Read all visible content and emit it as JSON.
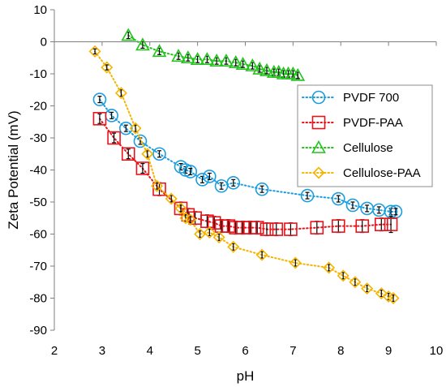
{
  "chart_data": {
    "type": "scatter",
    "xlabel": "pH",
    "ylabel": "Zeta Potential (mV)",
    "xlim": [
      2,
      10
    ],
    "ylim": [
      -90,
      10
    ],
    "xticks": [
      2,
      3,
      4,
      5,
      6,
      7,
      8,
      9,
      10
    ],
    "yticks": [
      10,
      0,
      -10,
      -20,
      -30,
      -40,
      -50,
      -60,
      -70,
      -80,
      -90
    ],
    "grid": false,
    "legend_position": "right",
    "series": [
      {
        "name": "PVDF 700",
        "marker": "circle",
        "color": "#1a9ee0",
        "line_color": "#1a9ee0",
        "x": [
          2.95,
          3.2,
          3.5,
          3.8,
          4.2,
          4.65,
          4.75,
          4.85,
          5.1,
          5.25,
          5.5,
          5.75,
          6.35,
          7.3,
          7.95,
          8.25,
          8.55,
          8.8,
          9.05,
          9.15
        ],
        "y": [
          -18,
          -23,
          -27,
          -31,
          -35,
          -39,
          -40,
          -40.5,
          -43,
          -42,
          -45,
          -44,
          -46,
          -48,
          -49,
          -51,
          -52,
          -52.5,
          -53,
          -53
        ],
        "errors": [
          1,
          1,
          1,
          1,
          1,
          1,
          1,
          1,
          1,
          1,
          1,
          1,
          1,
          1,
          1,
          1,
          1,
          1,
          1,
          1
        ]
      },
      {
        "name": "PVDF-PAA",
        "marker": "square",
        "color": "#e8141c",
        "line_color": "#e8141c",
        "x": [
          2.95,
          3.25,
          3.55,
          3.85,
          4.2,
          4.65,
          4.8,
          4.95,
          5.2,
          5.35,
          5.5,
          5.65,
          5.8,
          5.95,
          6.1,
          6.25,
          6.45,
          6.65,
          6.95,
          7.5,
          7.95,
          8.45,
          8.85,
          9.05
        ],
        "y": [
          -24,
          -30,
          -35,
          -39.5,
          -46,
          -52,
          -54,
          -55,
          -56,
          -56.5,
          -57.5,
          -57.5,
          -58,
          -58,
          -58,
          -58,
          -58.5,
          -58.5,
          -58.5,
          -58,
          -57.5,
          -57.5,
          -57,
          -57
        ],
        "errors": [
          1.5,
          1.5,
          1.5,
          1.5,
          2,
          2,
          2,
          2,
          2,
          2,
          2,
          2,
          2,
          2,
          2,
          2,
          2,
          2,
          2,
          2,
          2,
          2,
          2,
          2.5
        ]
      },
      {
        "name": "Cellulose",
        "marker": "triangle",
        "color": "#22c41c",
        "line_color": "#22c41c",
        "x": [
          3.55,
          3.85,
          4.2,
          4.6,
          4.8,
          5.0,
          5.2,
          5.4,
          5.6,
          5.8,
          5.95,
          6.15,
          6.3,
          6.45,
          6.6,
          6.7,
          6.8,
          6.9,
          7.0,
          7.1
        ],
        "y": [
          2,
          -1,
          -3,
          -4.5,
          -5,
          -5.5,
          -5.5,
          -6,
          -6,
          -6.5,
          -7,
          -7.5,
          -8.5,
          -9,
          -9.5,
          -9.5,
          -10,
          -10,
          -10,
          -10.5
        ],
        "errors": [
          1,
          1,
          1,
          1,
          1,
          1,
          1,
          1,
          1,
          1,
          1,
          1,
          1,
          1,
          1,
          1,
          1,
          1,
          1,
          1
        ]
      },
      {
        "name": "Cellulose-PAA",
        "marker": "diamond",
        "color": "#f5b400",
        "line_color": "#f5b400",
        "x": [
          2.85,
          3.1,
          3.4,
          3.7,
          3.95,
          4.15,
          4.45,
          4.65,
          4.75,
          4.85,
          5.05,
          5.25,
          5.45,
          5.75,
          6.35,
          7.05,
          7.75,
          8.05,
          8.3,
          8.55,
          8.85,
          9.0,
          9.1
        ],
        "y": [
          -3,
          -8,
          -16,
          -27,
          -35,
          -45,
          -49,
          -52,
          -55,
          -55.5,
          -60,
          -59.5,
          -61,
          -64,
          -66.5,
          -69,
          -70.5,
          -73,
          -75,
          -77,
          -78.5,
          -79.5,
          -80
        ],
        "errors": [
          0.8,
          0.8,
          1,
          1,
          1,
          1,
          1,
          1,
          1,
          1,
          1,
          1,
          1,
          1,
          1,
          1,
          1,
          1,
          1,
          1,
          1,
          1,
          1
        ]
      }
    ]
  }
}
